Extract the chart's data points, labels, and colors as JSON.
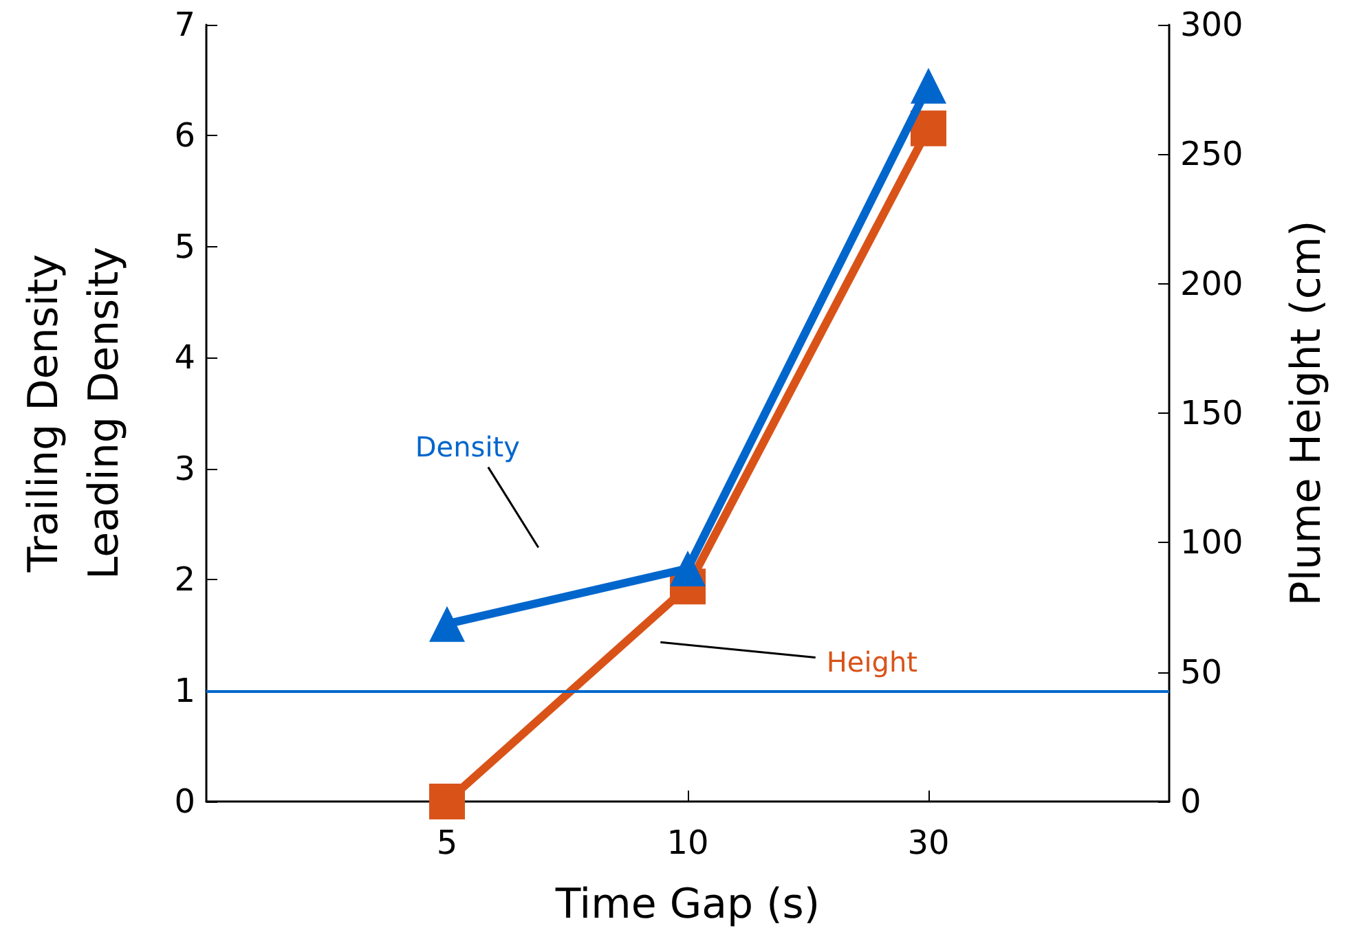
{
  "chart_data": {
    "type": "line",
    "xlabel": "Time Gap (s)",
    "ylabel": "Trailing Density\nLeading Density",
    "y2label": "Plume Height (cm)",
    "categories": [
      null,
      "5",
      "10",
      "30",
      null
    ],
    "series": [
      {
        "name": "Density",
        "color": "#0066cc",
        "marker": "triangle",
        "values": [
          null,
          1.6,
          2.1,
          6.45,
          null
        ]
      },
      {
        "name": "Height",
        "color": "#d95319",
        "marker": "square",
        "axis": "y2",
        "values": [
          null,
          0,
          83,
          260,
          null
        ]
      }
    ],
    "ylim": [
      0,
      7
    ],
    "yticks": [
      0,
      1,
      2,
      3,
      4,
      5,
      6,
      7
    ],
    "y2lim": [
      0,
      300
    ],
    "y2ticks": [
      0,
      50,
      100,
      150,
      200,
      250,
      300
    ],
    "ref_lines": [
      {
        "axis": "y",
        "value": 1,
        "color": "#0066cc"
      }
    ],
    "grid": false,
    "legend": false,
    "line_style": "solid"
  }
}
